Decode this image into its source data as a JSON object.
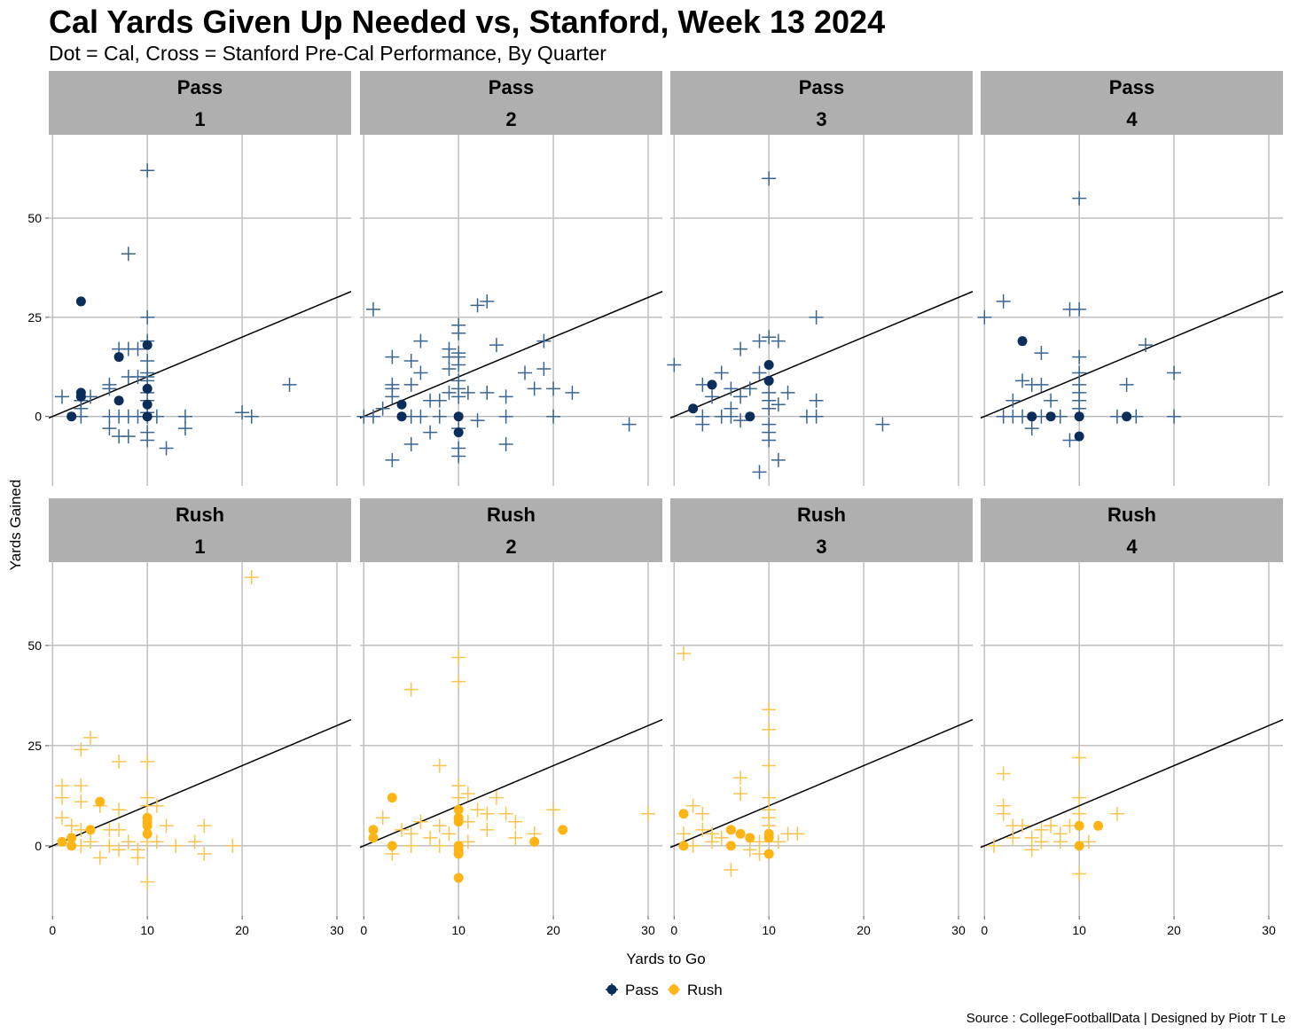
{
  "title": "Cal Yards Given Up Needed vs, Stanford, Week 13 2024",
  "subtitle": "Dot = Cal, Cross = Stanford Pre-Cal Performance, By Quarter",
  "source": "Source : CollegeFootballData | Designed by Piotr T Le",
  "colors": {
    "pass_dot": "#0a2d59",
    "pass_cross": "#3a6592",
    "rush_dot": "#fdb515",
    "rush_cross": "#fcc44e",
    "strip": "#afafaf"
  },
  "chart_data": {
    "type": "scatter",
    "title": "Cal Yards Given Up Needed vs, Stanford, Week 13 2024",
    "xlabel": "Yards to Go",
    "ylabel": "Yards Gained",
    "xlim": [
      -0.4,
      31.5
    ],
    "ylim": [
      -17.5,
      71
    ],
    "xticks": [
      0,
      10,
      20,
      30
    ],
    "yticks": [
      0,
      25,
      50
    ],
    "reference_line": "y = x",
    "legend": {
      "placement": "bottom",
      "entries": [
        "Pass",
        "Rush"
      ]
    },
    "panels": [
      {
        "play": "Pass",
        "quarter": "1",
        "cal": [
          [
            2,
            0
          ],
          [
            3,
            29
          ],
          [
            3,
            6
          ],
          [
            3,
            5
          ],
          [
            7,
            15
          ],
          [
            7,
            4
          ],
          [
            10,
            18
          ],
          [
            10,
            7
          ],
          [
            10,
            3
          ],
          [
            10,
            0
          ]
        ],
        "stanford": [
          [
            10,
            62
          ],
          [
            8,
            41
          ],
          [
            10,
            25
          ],
          [
            10,
            19
          ],
          [
            7,
            17
          ],
          [
            8,
            17
          ],
          [
            9,
            17
          ],
          [
            10,
            14
          ],
          [
            10,
            11
          ],
          [
            8,
            10
          ],
          [
            9,
            10
          ],
          [
            10,
            10
          ],
          [
            10,
            9
          ],
          [
            6,
            8
          ],
          [
            6,
            7
          ],
          [
            4,
            5
          ],
          [
            1,
            5
          ],
          [
            3,
            4
          ],
          [
            10,
            6
          ],
          [
            10,
            4
          ],
          [
            3,
            2
          ],
          [
            3,
            0
          ],
          [
            6,
            0
          ],
          [
            7,
            0
          ],
          [
            8,
            0
          ],
          [
            9,
            0
          ],
          [
            10,
            0
          ],
          [
            11,
            0
          ],
          [
            14,
            0
          ],
          [
            14,
            -3
          ],
          [
            6,
            -3
          ],
          [
            7,
            -5
          ],
          [
            8,
            -5
          ],
          [
            10,
            -4
          ],
          [
            10,
            -6
          ],
          [
            12,
            -8
          ],
          [
            20,
            1
          ],
          [
            21,
            0
          ],
          [
            25,
            8
          ],
          [
            10,
            1
          ]
        ]
      },
      {
        "play": "Pass",
        "quarter": "2",
        "cal": [
          [
            4,
            3
          ],
          [
            4,
            0
          ],
          [
            10,
            0
          ],
          [
            10,
            -4
          ]
        ],
        "stanford": [
          [
            1,
            27
          ],
          [
            3,
            15
          ],
          [
            3,
            8
          ],
          [
            3,
            7
          ],
          [
            3,
            5
          ],
          [
            3,
            -11
          ],
          [
            5,
            14
          ],
          [
            5,
            8
          ],
          [
            6,
            19
          ],
          [
            6,
            11
          ],
          [
            5,
            -7
          ],
          [
            7,
            4
          ],
          [
            7,
            -4
          ],
          [
            8,
            4
          ],
          [
            8,
            0
          ],
          [
            6,
            0
          ],
          [
            5,
            0
          ],
          [
            9,
            17
          ],
          [
            9,
            15
          ],
          [
            9,
            6
          ],
          [
            9,
            12
          ],
          [
            10,
            23
          ],
          [
            10,
            21
          ],
          [
            10,
            16
          ],
          [
            10,
            15
          ],
          [
            10,
            13
          ],
          [
            10,
            9
          ],
          [
            10,
            7
          ],
          [
            10,
            5
          ],
          [
            10,
            -3
          ],
          [
            10,
            -8
          ],
          [
            10,
            -10
          ],
          [
            11,
            6
          ],
          [
            12,
            28
          ],
          [
            13,
            29
          ],
          [
            12,
            -1
          ],
          [
            13,
            6
          ],
          [
            14,
            18
          ],
          [
            15,
            5
          ],
          [
            15,
            0
          ],
          [
            15,
            -7
          ],
          [
            17,
            11
          ],
          [
            18,
            7
          ],
          [
            19,
            19
          ],
          [
            19,
            12
          ],
          [
            20,
            7
          ],
          [
            20,
            0
          ],
          [
            22,
            6
          ],
          [
            28,
            -2
          ],
          [
            1,
            0
          ],
          [
            2,
            2
          ],
          [
            0,
            0
          ]
        ]
      },
      {
        "play": "Pass",
        "quarter": "3",
        "cal": [
          [
            2,
            2
          ],
          [
            4,
            8
          ],
          [
            8,
            0
          ],
          [
            10,
            13
          ],
          [
            10,
            9
          ]
        ],
        "stanford": [
          [
            0,
            13
          ],
          [
            3,
            8
          ],
          [
            3,
            -2
          ],
          [
            4,
            5
          ],
          [
            5,
            11
          ],
          [
            6,
            7
          ],
          [
            6,
            2
          ],
          [
            7,
            17
          ],
          [
            7,
            5
          ],
          [
            7,
            -1
          ],
          [
            8,
            7
          ],
          [
            9,
            19
          ],
          [
            9,
            11
          ],
          [
            9,
            -14
          ],
          [
            10,
            60
          ],
          [
            10,
            20
          ],
          [
            10,
            6
          ],
          [
            10,
            4
          ],
          [
            10,
            2
          ],
          [
            10,
            -2
          ],
          [
            10,
            -4
          ],
          [
            10,
            -6
          ],
          [
            11,
            19
          ],
          [
            11,
            3
          ],
          [
            11,
            -11
          ],
          [
            12,
            6
          ],
          [
            14,
            0
          ],
          [
            15,
            25
          ],
          [
            15,
            4
          ],
          [
            15,
            0
          ],
          [
            22,
            -2
          ],
          [
            5,
            0
          ],
          [
            3,
            0
          ],
          [
            6,
            0
          ]
        ]
      },
      {
        "play": "Pass",
        "quarter": "4",
        "cal": [
          [
            4,
            19
          ],
          [
            5,
            0
          ],
          [
            7,
            0
          ],
          [
            10,
            0
          ],
          [
            10,
            -5
          ],
          [
            15,
            0
          ]
        ],
        "stanford": [
          [
            0,
            25
          ],
          [
            2,
            29
          ],
          [
            2,
            0
          ],
          [
            3,
            4
          ],
          [
            3,
            0
          ],
          [
            4,
            9
          ],
          [
            4,
            0
          ],
          [
            5,
            8
          ],
          [
            5,
            -3
          ],
          [
            6,
            16
          ],
          [
            6,
            8
          ],
          [
            6,
            0
          ],
          [
            7,
            4
          ],
          [
            8,
            0
          ],
          [
            9,
            27
          ],
          [
            9,
            -6
          ],
          [
            10,
            55
          ],
          [
            10,
            27
          ],
          [
            10,
            15
          ],
          [
            10,
            11
          ],
          [
            10,
            8
          ],
          [
            10,
            6
          ],
          [
            10,
            4
          ],
          [
            10,
            2
          ],
          [
            14,
            0
          ],
          [
            15,
            8
          ],
          [
            16,
            0
          ],
          [
            17,
            18
          ],
          [
            20,
            11
          ],
          [
            20,
            0
          ]
        ]
      },
      {
        "play": "Rush",
        "quarter": "1",
        "cal": [
          [
            1,
            1
          ],
          [
            2,
            2
          ],
          [
            2,
            0
          ],
          [
            4,
            4
          ],
          [
            5,
            11
          ],
          [
            10,
            7
          ],
          [
            10,
            6
          ],
          [
            10,
            5
          ],
          [
            10,
            3
          ]
        ],
        "stanford": [
          [
            21,
            67
          ],
          [
            4,
            27
          ],
          [
            3,
            24
          ],
          [
            7,
            21
          ],
          [
            10,
            21
          ],
          [
            1,
            15
          ],
          [
            3,
            15
          ],
          [
            1,
            12
          ],
          [
            3,
            11
          ],
          [
            5,
            10
          ],
          [
            7,
            9
          ],
          [
            10,
            12
          ],
          [
            10,
            10
          ],
          [
            11,
            10
          ],
          [
            12,
            5
          ],
          [
            1,
            7
          ],
          [
            2,
            5
          ],
          [
            3,
            4
          ],
          [
            4,
            1
          ],
          [
            6,
            4
          ],
          [
            7,
            4
          ],
          [
            8,
            1
          ],
          [
            9,
            -1
          ],
          [
            9,
            -3
          ],
          [
            10,
            -9
          ],
          [
            10,
            1
          ],
          [
            11,
            1
          ],
          [
            13,
            0
          ],
          [
            15,
            1
          ],
          [
            16,
            5
          ],
          [
            16,
            -2
          ],
          [
            19,
            0
          ],
          [
            5,
            -3
          ],
          [
            3,
            0
          ],
          [
            7,
            -1
          ],
          [
            6,
            0
          ]
        ]
      },
      {
        "play": "Rush",
        "quarter": "2",
        "cal": [
          [
            1,
            4
          ],
          [
            1,
            2
          ],
          [
            3,
            12
          ],
          [
            3,
            0
          ],
          [
            10,
            9
          ],
          [
            10,
            7
          ],
          [
            10,
            6
          ],
          [
            10,
            0
          ],
          [
            10,
            -1
          ],
          [
            10,
            -2
          ],
          [
            10,
            -8
          ],
          [
            18,
            1
          ],
          [
            21,
            4
          ]
        ],
        "stanford": [
          [
            10,
            47
          ],
          [
            10,
            41
          ],
          [
            5,
            39
          ],
          [
            8,
            20
          ],
          [
            10,
            15
          ],
          [
            10,
            12
          ],
          [
            11,
            13
          ],
          [
            2,
            7
          ],
          [
            3,
            -2
          ],
          [
            4,
            4
          ],
          [
            5,
            3
          ],
          [
            6,
            6
          ],
          [
            7,
            2
          ],
          [
            8,
            5
          ],
          [
            9,
            3
          ],
          [
            11,
            6
          ],
          [
            12,
            9
          ],
          [
            13,
            8
          ],
          [
            13,
            4
          ],
          [
            15,
            8
          ],
          [
            16,
            6
          ],
          [
            16,
            2
          ],
          [
            18,
            3
          ],
          [
            20,
            9
          ],
          [
            30,
            8
          ],
          [
            14,
            12
          ],
          [
            5,
            0
          ],
          [
            8,
            0
          ],
          [
            11,
            1
          ]
        ]
      },
      {
        "play": "Rush",
        "quarter": "3",
        "cal": [
          [
            1,
            8
          ],
          [
            1,
            0
          ],
          [
            6,
            4
          ],
          [
            6,
            0
          ],
          [
            7,
            3
          ],
          [
            8,
            2
          ],
          [
            10,
            3
          ],
          [
            10,
            2
          ],
          [
            10,
            -2
          ]
        ],
        "stanford": [
          [
            1,
            48
          ],
          [
            10,
            34
          ],
          [
            10,
            29
          ],
          [
            10,
            20
          ],
          [
            7,
            17
          ],
          [
            7,
            13
          ],
          [
            10,
            12
          ],
          [
            10,
            9
          ],
          [
            10,
            7
          ],
          [
            10,
            5
          ],
          [
            2,
            10
          ],
          [
            3,
            8
          ],
          [
            2,
            0
          ],
          [
            3,
            4
          ],
          [
            4,
            3
          ],
          [
            5,
            2
          ],
          [
            6,
            -6
          ],
          [
            8,
            -1
          ],
          [
            9,
            -2
          ],
          [
            12,
            3
          ],
          [
            13,
            3
          ],
          [
            9,
            1
          ],
          [
            11,
            1
          ],
          [
            1,
            3
          ],
          [
            4,
            1
          ]
        ]
      },
      {
        "play": "Rush",
        "quarter": "4",
        "cal": [
          [
            10,
            5
          ],
          [
            10,
            0
          ],
          [
            12,
            5
          ]
        ],
        "stanford": [
          [
            2,
            18
          ],
          [
            2,
            10
          ],
          [
            2,
            8
          ],
          [
            3,
            5
          ],
          [
            1,
            0
          ],
          [
            3,
            2
          ],
          [
            4,
            5
          ],
          [
            5,
            -1
          ],
          [
            5,
            2
          ],
          [
            6,
            4
          ],
          [
            7,
            5
          ],
          [
            8,
            3
          ],
          [
            8,
            1
          ],
          [
            9,
            5
          ],
          [
            10,
            22
          ],
          [
            10,
            12
          ],
          [
            10,
            8
          ],
          [
            10,
            -7
          ],
          [
            11,
            1
          ],
          [
            14,
            8
          ],
          [
            6,
            1
          ]
        ]
      }
    ]
  }
}
